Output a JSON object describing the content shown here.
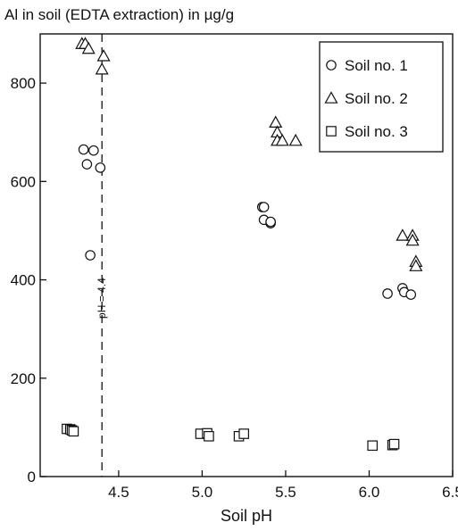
{
  "chart_data": {
    "type": "scatter",
    "title": "Al in soil (EDTA extraction) in µg/g",
    "xlabel": "Soil pH",
    "ylabel": "",
    "xlim": [
      4.03,
      6.5
    ],
    "ylim": [
      0,
      900
    ],
    "xticks": [
      4.5,
      5.0,
      5.5,
      6.0,
      6.5
    ],
    "xtick_labels": [
      "4.5",
      "5.0",
      "5.5",
      "6.0",
      "6.5"
    ],
    "yticks": [
      0,
      200,
      400,
      600,
      800
    ],
    "ytick_labels": [
      "0",
      "200",
      "400",
      "600",
      "800"
    ],
    "grid": false,
    "legend_position": "top-right",
    "annotation": {
      "text": "pH = 4.4",
      "x": 4.4
    },
    "series": [
      {
        "name": "Soil no. 1",
        "marker": "circle",
        "points": [
          [
            4.29,
            665
          ],
          [
            4.35,
            663
          ],
          [
            4.31,
            635
          ],
          [
            4.39,
            628
          ],
          [
            4.33,
            450
          ],
          [
            5.36,
            548
          ],
          [
            5.37,
            548
          ],
          [
            5.37,
            522
          ],
          [
            5.41,
            515
          ],
          [
            5.41,
            518
          ],
          [
            6.11,
            372
          ],
          [
            6.2,
            383
          ],
          [
            6.21,
            375
          ],
          [
            6.25,
            370
          ]
        ]
      },
      {
        "name": "Soil no. 2",
        "marker": "triangle",
        "points": [
          [
            4.28,
            880
          ],
          [
            4.3,
            880
          ],
          [
            4.32,
            870
          ],
          [
            4.41,
            855
          ],
          [
            4.4,
            828
          ],
          [
            5.44,
            720
          ],
          [
            5.45,
            700
          ],
          [
            5.45,
            683
          ],
          [
            5.48,
            683
          ],
          [
            5.56,
            683
          ],
          [
            6.2,
            490
          ],
          [
            6.26,
            490
          ],
          [
            6.26,
            480
          ],
          [
            6.28,
            437
          ],
          [
            6.28,
            428
          ]
        ]
      },
      {
        "name": "Soil no. 3",
        "marker": "square",
        "points": [
          [
            4.19,
            97
          ],
          [
            4.21,
            96
          ],
          [
            4.22,
            94
          ],
          [
            4.23,
            92
          ],
          [
            4.99,
            87
          ],
          [
            5.03,
            88
          ],
          [
            5.04,
            82
          ],
          [
            5.22,
            82
          ],
          [
            5.25,
            87
          ],
          [
            6.02,
            63
          ],
          [
            6.14,
            64
          ],
          [
            6.15,
            66
          ]
        ]
      }
    ]
  }
}
